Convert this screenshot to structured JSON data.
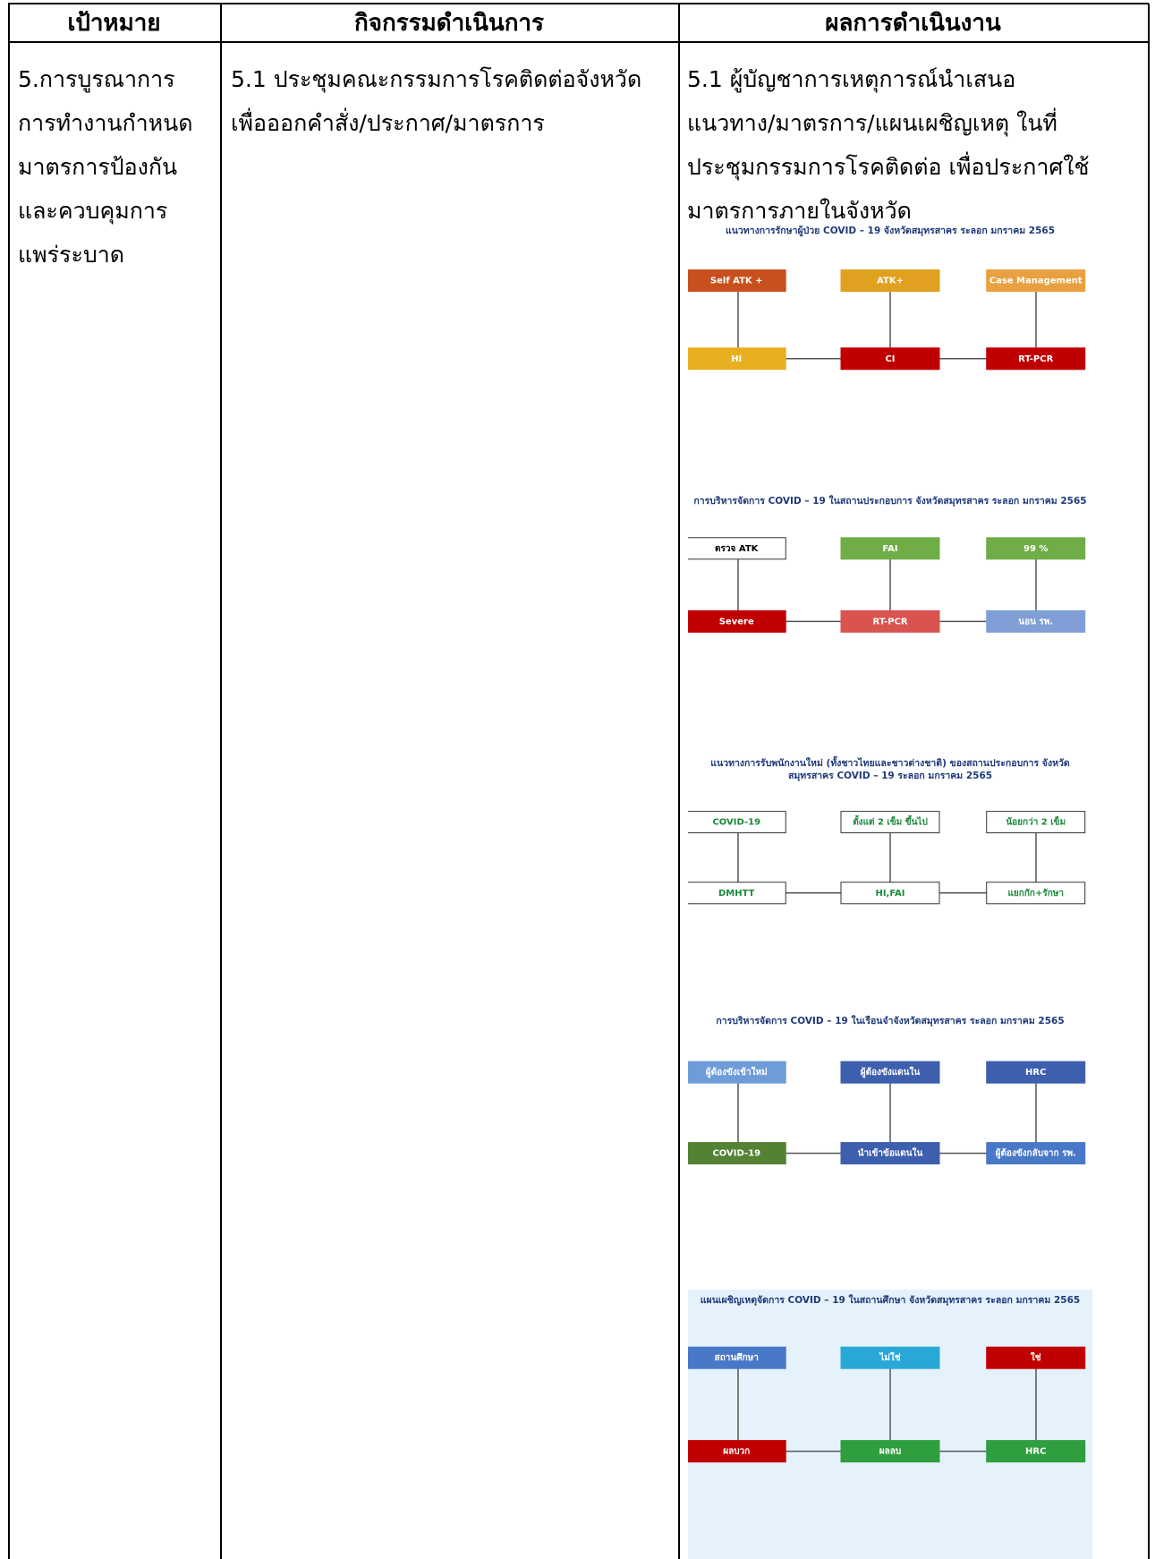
{
  "table": {
    "headers": [
      "เป้าหมาย",
      "กิจกรรมดำเนินการ",
      "ผลการดำเนินงาน"
    ],
    "rows": [
      [
        [
          "5.การบูรณาการ",
          "การทำงานกำหนด",
          "มาตรการป้องกัน",
          "และควบคุมการ",
          "แพร่ระบาด"
        ],
        [
          "5.1 ประชุมคณะกรรมการโรคติดต่อจังหวัด",
          "เพื่อออกคำสั่ง/ประกาศ/มาตรการ"
        ],
        [
          " 5.1 ผู้บัญชาการเหตุการณ์นำเสนอ",
          "แนวทาง/มาตรการ/แผนเผชิญเหตุ ในที่",
          "ประชุมกรรมการโรคติดต่อ เพื่อประกาศใช้",
          "มาตรการภายในจังหวัด"
        ]
      ]
    ]
  },
  "figures": [
    {
      "title": "แนวทางการรักษาผู้ป่วย COVID – 19 จังหวัดสมุทรสาคร ระลอก มกราคม 2565",
      "labels": [
        "Self ATK +",
        "ATK+",
        "Case Management",
        "HI",
        "CI",
        "RT-PCR"
      ]
    },
    {
      "title": "การบริหารจัดการ COVID – 19 ในสถานประกอบการ จังหวัดสมุทรสาคร ระลอก มกราคม 2565",
      "labels": [
        "ตรวจ ATK",
        "FAI",
        "99 %",
        "Severe",
        "RT-PCR",
        "นอน รพ."
      ]
    },
    {
      "title": "แนวทางการรับพนักงานใหม่ (ทั้งชาวไทยและชาวต่างชาติ) ของสถานประกอบการ จังหวัดสมุทรสาคร COVID – 19 ระลอก มกราคม 2565",
      "labels": [
        "COVID-19",
        "ตั้งแต่ 2 เข็ม ขึ้นไป",
        "น้อยกว่า 2 เข็ม",
        "DMHTT",
        "HI,FAI",
        "แยกกัก+รักษา"
      ]
    },
    {
      "title": "การบริหารจัดการ COVID – 19 ในเรือนจำจังหวัดสมุทรสาคร ระลอก มกราคม 2565",
      "labels": [
        "ผู้ต้องขังเข้าใหม่",
        "ผู้ต้องขังแดนใน",
        "HRC",
        "COVID-19",
        "นำเข้าข้อแดนใน",
        "ผู้ต้องขังกลับจาก รพ."
      ]
    },
    {
      "title": "แผนเผชิญเหตุจัดการ COVID – 19 ในสถานศึกษา จังหวัดสมุทรสาคร ระลอก มกราคม 2565",
      "labels": [
        "สถานศึกษา",
        "ไม่ใช่",
        "ใช่",
        "ผลบวก",
        "ผลลบ",
        "HRC"
      ]
    }
  ]
}
